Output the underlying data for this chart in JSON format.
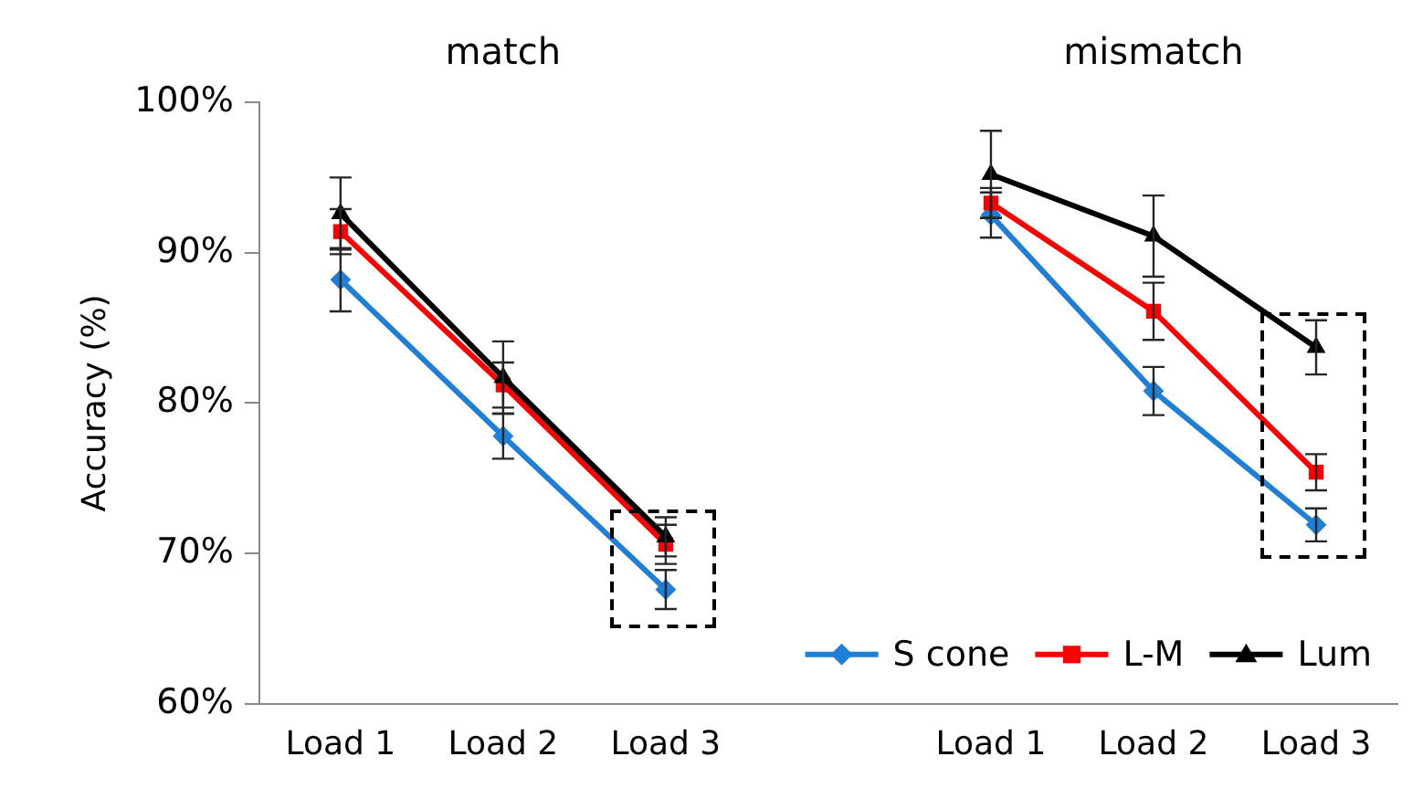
{
  "chart_data": {
    "type": "line",
    "ylabel": "Accuracy (%)",
    "annotations": [
      "match",
      "mismatch"
    ],
    "categories": [
      "Load 1",
      "Load 2",
      "Load 3",
      null,
      "Load 1",
      "Load 2",
      "Load 3"
    ],
    "series": [
      {
        "name": "S cone",
        "color": "#1f7ed6",
        "marker": "diamond",
        "values": [
          88.2,
          77.8,
          67.6,
          null,
          92.5,
          80.8,
          71.9
        ],
        "errors": [
          2.1,
          1.5,
          1.3,
          null,
          1.5,
          1.6,
          1.1
        ]
      },
      {
        "name": "L-M",
        "color": "#ff0000",
        "marker": "square",
        "values": [
          91.4,
          81.2,
          70.6,
          null,
          93.3,
          86.1,
          75.4
        ],
        "errors": [
          1.5,
          1.5,
          1.3,
          null,
          1.0,
          1.9,
          1.2
        ]
      },
      {
        "name": "Lum",
        "color": "#000000",
        "marker": "triangle",
        "values": [
          92.6,
          81.7,
          71.1,
          null,
          95.2,
          91.1,
          83.7
        ],
        "errors": [
          2.4,
          2.4,
          1.3,
          null,
          2.9,
          2.7,
          1.8
        ]
      }
    ],
    "ylim": [
      60,
      100
    ],
    "yticks": [
      {
        "value": 60,
        "label": "60%"
      },
      {
        "value": 70,
        "label": "70%"
      },
      {
        "value": 80,
        "label": "80%"
      },
      {
        "value": 90,
        "label": "90%"
      },
      {
        "value": 100,
        "label": "100%"
      }
    ],
    "grid": false,
    "legend": "bottom right",
    "line_style": "solid"
  }
}
